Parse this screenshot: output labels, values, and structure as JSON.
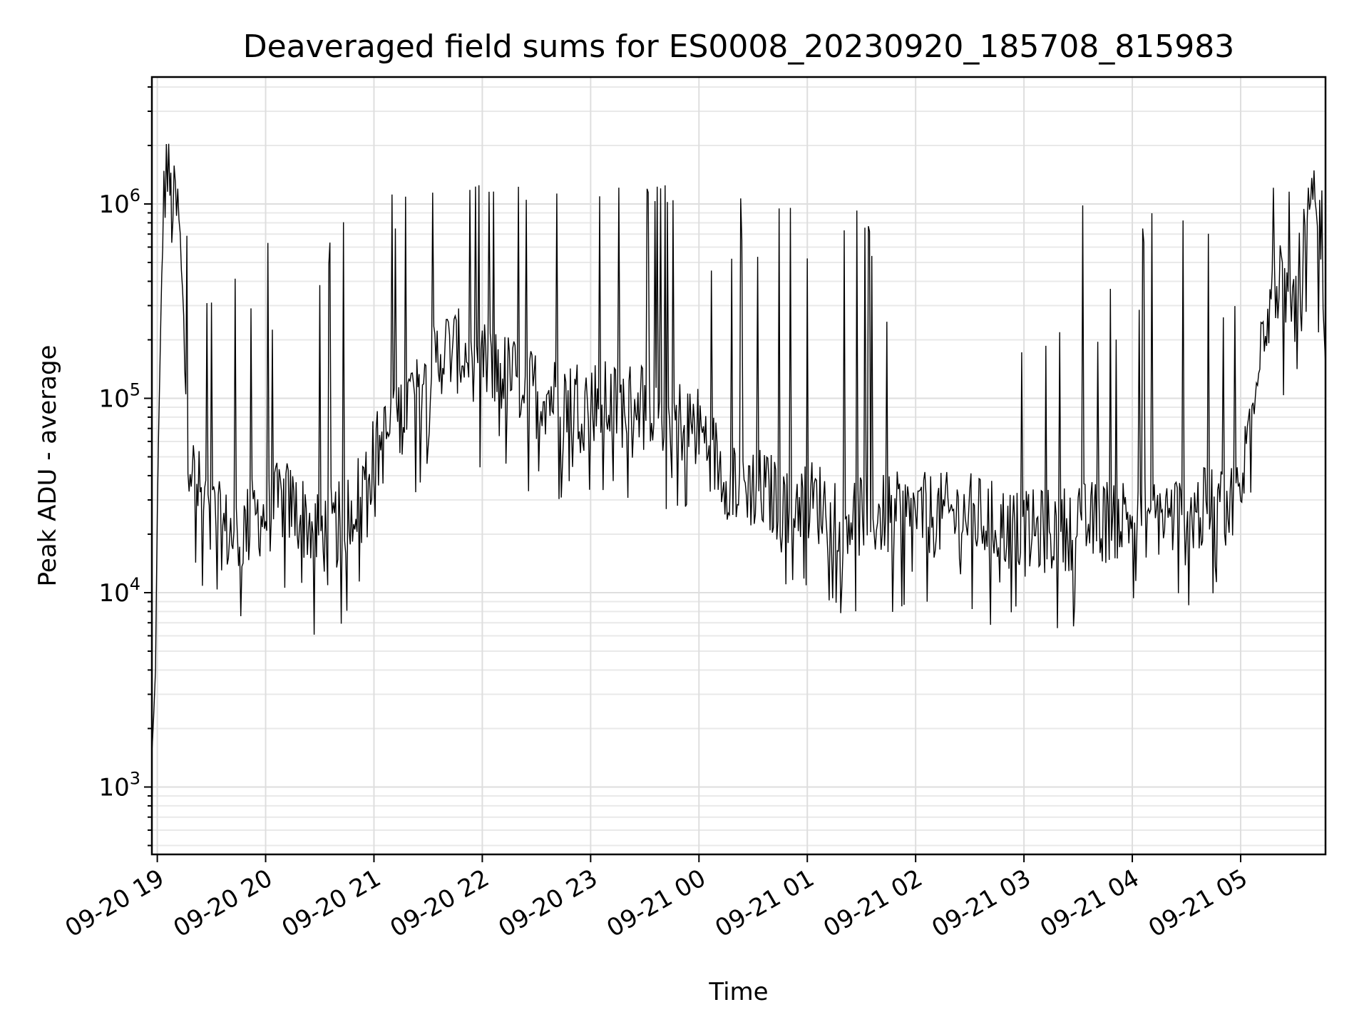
{
  "chart_data": {
    "type": "line",
    "title": "Deaveraged field sums for ES0008_20230920_185708_815983",
    "xlabel": "Time",
    "ylabel": "Peak ADU - average",
    "yscale": "log",
    "ylim": [
      450,
      4500000
    ],
    "xlim": [
      "2023-09-20 18:57",
      "2023-09-21 05:47"
    ],
    "grid": true,
    "line_color": "#000000",
    "x_ticks": [
      {
        "value": "2023-09-20 19:00",
        "label": "09-20 19"
      },
      {
        "value": "2023-09-20 20:00",
        "label": "09-20 20"
      },
      {
        "value": "2023-09-20 21:00",
        "label": "09-20 21"
      },
      {
        "value": "2023-09-20 22:00",
        "label": "09-20 22"
      },
      {
        "value": "2023-09-20 23:00",
        "label": "09-20 23"
      },
      {
        "value": "2023-09-21 00:00",
        "label": "09-21 00"
      },
      {
        "value": "2023-09-21 01:00",
        "label": "09-21 01"
      },
      {
        "value": "2023-09-21 02:00",
        "label": "09-21 02"
      },
      {
        "value": "2023-09-21 03:00",
        "label": "09-21 03"
      },
      {
        "value": "2023-09-21 04:00",
        "label": "09-21 04"
      },
      {
        "value": "2023-09-21 05:00",
        "label": "09-21 05"
      }
    ],
    "y_ticks": [
      {
        "value": 1000,
        "base": "10",
        "exp": "3"
      },
      {
        "value": 10000,
        "base": "10",
        "exp": "4"
      },
      {
        "value": 100000,
        "base": "10",
        "exp": "5"
      },
      {
        "value": 1000000,
        "base": "10",
        "exp": "6"
      }
    ],
    "series": [
      {
        "x": [
          "2023-09-20 18:57",
          "2023-09-20 18:58",
          "2023-09-20 18:59",
          "2023-09-20 19:00",
          "2023-09-20 19:02",
          "2023-09-20 19:03",
          "2023-09-20 19:05",
          "2023-09-20 19:07",
          "2023-09-20 19:08",
          "2023-09-20 19:10",
          "2023-09-20 19:12",
          "2023-09-20 19:14",
          "2023-09-20 19:17",
          "2023-09-20 19:20",
          "2023-09-20 19:25",
          "2023-09-20 19:30",
          "2023-09-20 19:35",
          "2023-09-20 19:40",
          "2023-09-20 19:45",
          "2023-09-20 19:50",
          "2023-09-20 19:55",
          "2023-09-20 20:00",
          "2023-09-20 20:10",
          "2023-09-20 20:20",
          "2023-09-20 20:30",
          "2023-09-20 20:40",
          "2023-09-20 20:50",
          "2023-09-20 21:00",
          "2023-09-20 21:10",
          "2023-09-20 21:20",
          "2023-09-20 21:30",
          "2023-09-20 21:40",
          "2023-09-20 21:50",
          "2023-09-20 22:00",
          "2023-09-20 22:15",
          "2023-09-20 22:30",
          "2023-09-20 22:45",
          "2023-09-20 23:00",
          "2023-09-20 23:15",
          "2023-09-20 23:30",
          "2023-09-20 23:45",
          "2023-09-21 00:00",
          "2023-09-21 00:15",
          "2023-09-21 00:30",
          "2023-09-21 00:45",
          "2023-09-21 01:00",
          "2023-09-21 01:30",
          "2023-09-21 02:00",
          "2023-09-21 02:30",
          "2023-09-21 03:00",
          "2023-09-21 03:30",
          "2023-09-21 04:00",
          "2023-09-21 04:30",
          "2023-09-21 05:00",
          "2023-09-21 05:05",
          "2023-09-21 05:10",
          "2023-09-21 05:15",
          "2023-09-21 05:20",
          "2023-09-21 05:25",
          "2023-09-21 05:30",
          "2023-09-21 05:35",
          "2023-09-21 05:40",
          "2023-09-21 05:45",
          "2023-09-21 05:47"
        ],
        "y": [
          1500,
          2300,
          4000,
          25000,
          200000,
          800000,
          1600000,
          1200000,
          900000,
          1000000,
          800000,
          300000,
          60000,
          40000,
          30000,
          25000,
          22000,
          20000,
          20000,
          22000,
          25000,
          25000,
          30000,
          25000,
          20000,
          22000,
          30000,
          50000,
          70000,
          100000,
          150000,
          180000,
          170000,
          150000,
          130000,
          110000,
          100000,
          100000,
          90000,
          100000,
          80000,
          70000,
          40000,
          35000,
          30000,
          30000,
          25000,
          25000,
          25000,
          20000,
          22000,
          25000,
          25000,
          30000,
          80000,
          200000,
          300000,
          400000,
          350000,
          300000,
          600000,
          1000000,
          400000,
          150000
        ]
      }
    ]
  }
}
